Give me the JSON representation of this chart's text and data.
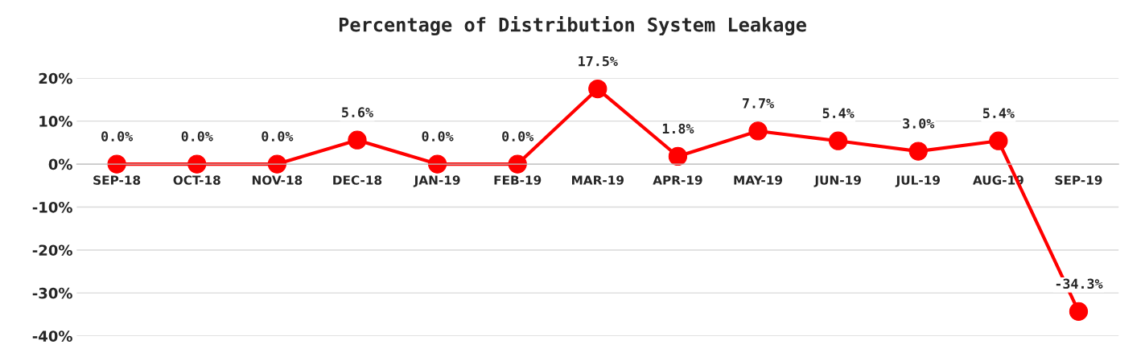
{
  "chart_data": {
    "type": "line",
    "title": "Percentage of Distribution System Leakage",
    "categories": [
      "SEP-18",
      "OCT-18",
      "NOV-18",
      "DEC-18",
      "JAN-19",
      "FEB-19",
      "MAR-19",
      "APR-19",
      "MAY-19",
      "JUN-19",
      "JUL-19",
      "AUG-19",
      "SEP-19"
    ],
    "series": [
      {
        "color": "#ff0000",
        "values": [
          0.0,
          0.0,
          0.0,
          5.6,
          0.0,
          0.0,
          17.5,
          1.8,
          7.7,
          5.4,
          3.0,
          5.4,
          -34.3
        ],
        "value_labels": [
          "0.0%",
          "0.0%",
          "0.0%",
          "5.6%",
          "0.0%",
          "0.0%",
          "17.5%",
          "1.8%",
          "7.7%",
          "5.4%",
          "3.0%",
          "5.4%",
          "-34.3%"
        ]
      }
    ],
    "ylim": [
      -40,
      20
    ],
    "yticks": [
      {
        "value": -40,
        "label": "-40%"
      },
      {
        "value": -30,
        "label": "-30%"
      },
      {
        "value": -20,
        "label": "-20%"
      },
      {
        "value": -10,
        "label": "-10%"
      },
      {
        "value": 0,
        "label": "0%"
      },
      {
        "value": 10,
        "label": "10%"
      },
      {
        "value": 20,
        "label": "20%"
      }
    ],
    "grid": "y",
    "marker": "circle",
    "line_style": "solid"
  }
}
